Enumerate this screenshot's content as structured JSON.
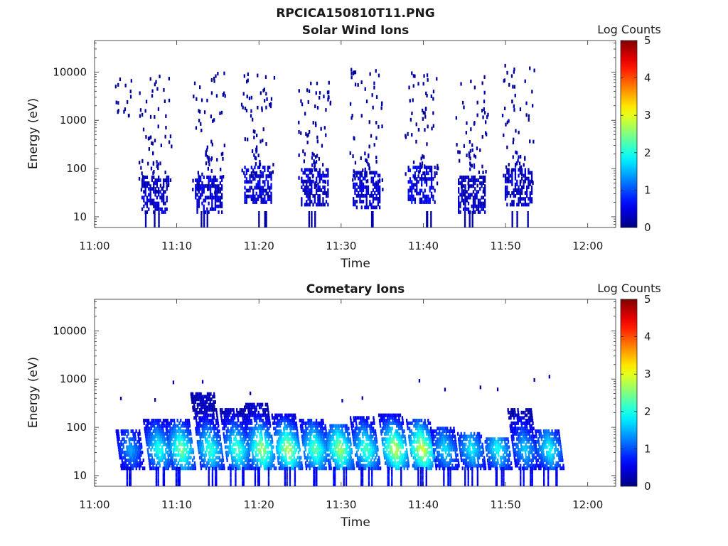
{
  "figure": {
    "title": "RPCICA150810T11.PNG"
  },
  "chart_data": [
    {
      "type": "heatmap",
      "title": "Solar Wind Ions",
      "xlabel": "Time",
      "ylabel": "Energy (eV)",
      "x_ticks": [
        "11:00",
        "11:10",
        "11:20",
        "11:30",
        "11:40",
        "11:50",
        "12:00"
      ],
      "y_ticks": [
        "10",
        "100",
        "1000",
        "10000"
      ],
      "xlim": [
        "11:00",
        "12:03"
      ],
      "ylim": [
        6,
        45000
      ],
      "y_scale": "log",
      "colorbar": {
        "label": "Log Counts",
        "ticks": [
          "0",
          "1",
          "2",
          "3",
          "4",
          "5"
        ],
        "range": [
          0,
          5
        ],
        "colormap": "jet"
      },
      "clusters": [
        {
          "t": 7.3,
          "core_e": 28,
          "scatter_top": 9000,
          "core_count": 0.4
        },
        {
          "t": 13.8,
          "core_e": 28,
          "scatter_top": 12000,
          "core_count": 0.5
        },
        {
          "t": 19.8,
          "core_e": 45,
          "scatter_top": 9000,
          "core_count": 0.6
        },
        {
          "t": 26.7,
          "core_e": 40,
          "scatter_top": 8000,
          "core_count": 0.4
        },
        {
          "t": 33.0,
          "core_e": 35,
          "scatter_top": 12000,
          "core_count": 0.45
        },
        {
          "t": 39.7,
          "core_e": 45,
          "scatter_top": 10000,
          "core_count": 0.65
        },
        {
          "t": 45.8,
          "core_e": 28,
          "scatter_top": 8000,
          "core_count": 0.35
        },
        {
          "t": 51.5,
          "core_e": 40,
          "scatter_top": 16000,
          "core_count": 0.35
        }
      ]
    },
    {
      "type": "heatmap",
      "title": "Cometary Ions",
      "xlabel": "Time",
      "ylabel": "Energy (eV)",
      "x_ticks": [
        "11:00",
        "11:10",
        "11:20",
        "11:30",
        "11:40",
        "11:50",
        "12:00"
      ],
      "y_ticks": [
        "10",
        "100",
        "1000",
        "10000"
      ],
      "xlim": [
        "11:00",
        "12:03"
      ],
      "ylim": [
        6,
        45000
      ],
      "y_scale": "log",
      "colorbar": {
        "label": "Log Counts",
        "ticks": [
          "0",
          "1",
          "2",
          "3",
          "4",
          "5"
        ],
        "range": [
          0,
          5
        ],
        "colormap": "jet"
      },
      "clusters": [
        {
          "t": 4.3,
          "top_e": 90,
          "peak": 1.4
        },
        {
          "t": 7.8,
          "top_e": 140,
          "peak": 2.0
        },
        {
          "t": 10.5,
          "top_e": 150,
          "peak": 2.4
        },
        {
          "t": 14.0,
          "top_e": 500,
          "peak": 2.1
        },
        {
          "t": 17.3,
          "top_e": 250,
          "peak": 2.2
        },
        {
          "t": 20.3,
          "top_e": 300,
          "peak": 2.6
        },
        {
          "t": 23.5,
          "top_e": 180,
          "peak": 2.7
        },
        {
          "t": 26.8,
          "top_e": 140,
          "peak": 2.3
        },
        {
          "t": 29.8,
          "top_e": 120,
          "peak": 2.6
        },
        {
          "t": 33.0,
          "top_e": 160,
          "peak": 2.2
        },
        {
          "t": 36.5,
          "top_e": 180,
          "peak": 2.8
        },
        {
          "t": 39.8,
          "top_e": 150,
          "peak": 2.9
        },
        {
          "t": 42.6,
          "top_e": 100,
          "peak": 1.7
        },
        {
          "t": 45.8,
          "top_e": 80,
          "peak": 1.8
        },
        {
          "t": 49.0,
          "top_e": 60,
          "peak": 1.9
        },
        {
          "t": 52.3,
          "top_e": 250,
          "peak": 1.6
        },
        {
          "t": 55.3,
          "top_e": 90,
          "peak": 1.9
        }
      ]
    }
  ]
}
